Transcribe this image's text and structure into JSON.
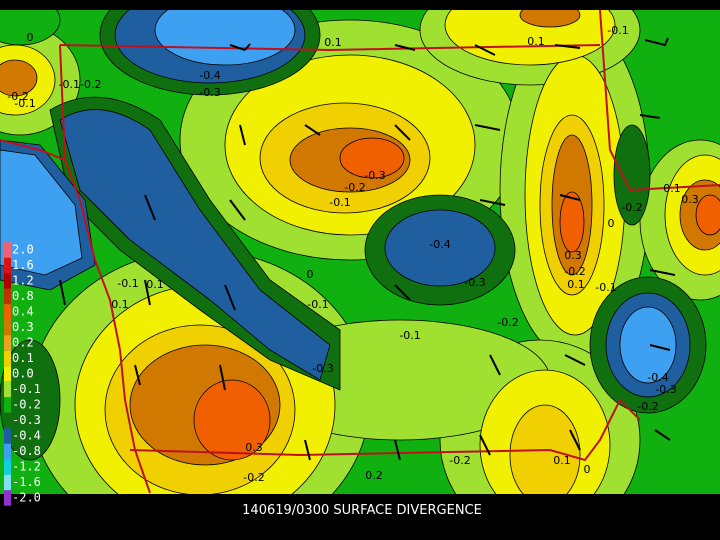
{
  "caption": "140619/0300 SURFACE DIVERGENCE",
  "legend": {
    "items": [
      {
        "label": "2.0",
        "color": "#f06070"
      },
      {
        "label": "1.6",
        "color": "#e01010"
      },
      {
        "label": "1.2",
        "color": "#b00000"
      },
      {
        "label": "0.8",
        "color": "#c03000"
      },
      {
        "label": "0.4",
        "color": "#f06000"
      },
      {
        "label": "0.3",
        "color": "#d07800"
      },
      {
        "label": "0.2",
        "color": "#f0a020"
      },
      {
        "label": "0.1",
        "color": "#f0d000"
      },
      {
        "label": "0.0",
        "color": "#f0f000"
      },
      {
        "label": "-0.1",
        "color": "#a0e030"
      },
      {
        "label": "-0.2",
        "color": "#10b010"
      },
      {
        "label": "-0.3",
        "color": "#107010"
      },
      {
        "label": "-0.4",
        "color": "#1f5fa0"
      },
      {
        "label": "-0.8",
        "color": "#3ea0f0"
      },
      {
        "label": "-1.2",
        "color": "#10d0e0"
      },
      {
        "label": "-1.6",
        "color": "#80e0f0"
      },
      {
        "label": "-2.0",
        "color": "#9030d0"
      }
    ]
  },
  "contour_labels": [
    "0.1",
    "0.1",
    "-0.1",
    "-0.4",
    "-0.3",
    "0",
    "-0.1-0.2",
    "-0.2",
    "-0.1",
    "-0.3",
    "-0.2",
    "-0.1",
    "-0.4",
    "-0.3",
    "-0.2",
    "-0.1",
    "0.3",
    "-0.2",
    "0.1",
    "-0.1",
    "-0.2",
    "0",
    "0.1",
    "0.3",
    "-0.1",
    "0.1",
    "0.1",
    "0",
    "-0.1",
    "-0.3",
    "-0.4",
    "-0.3",
    "-0.2",
    "0.3",
    "-0.2",
    "-0.2",
    "0.1",
    "0.2",
    "0"
  ]
}
